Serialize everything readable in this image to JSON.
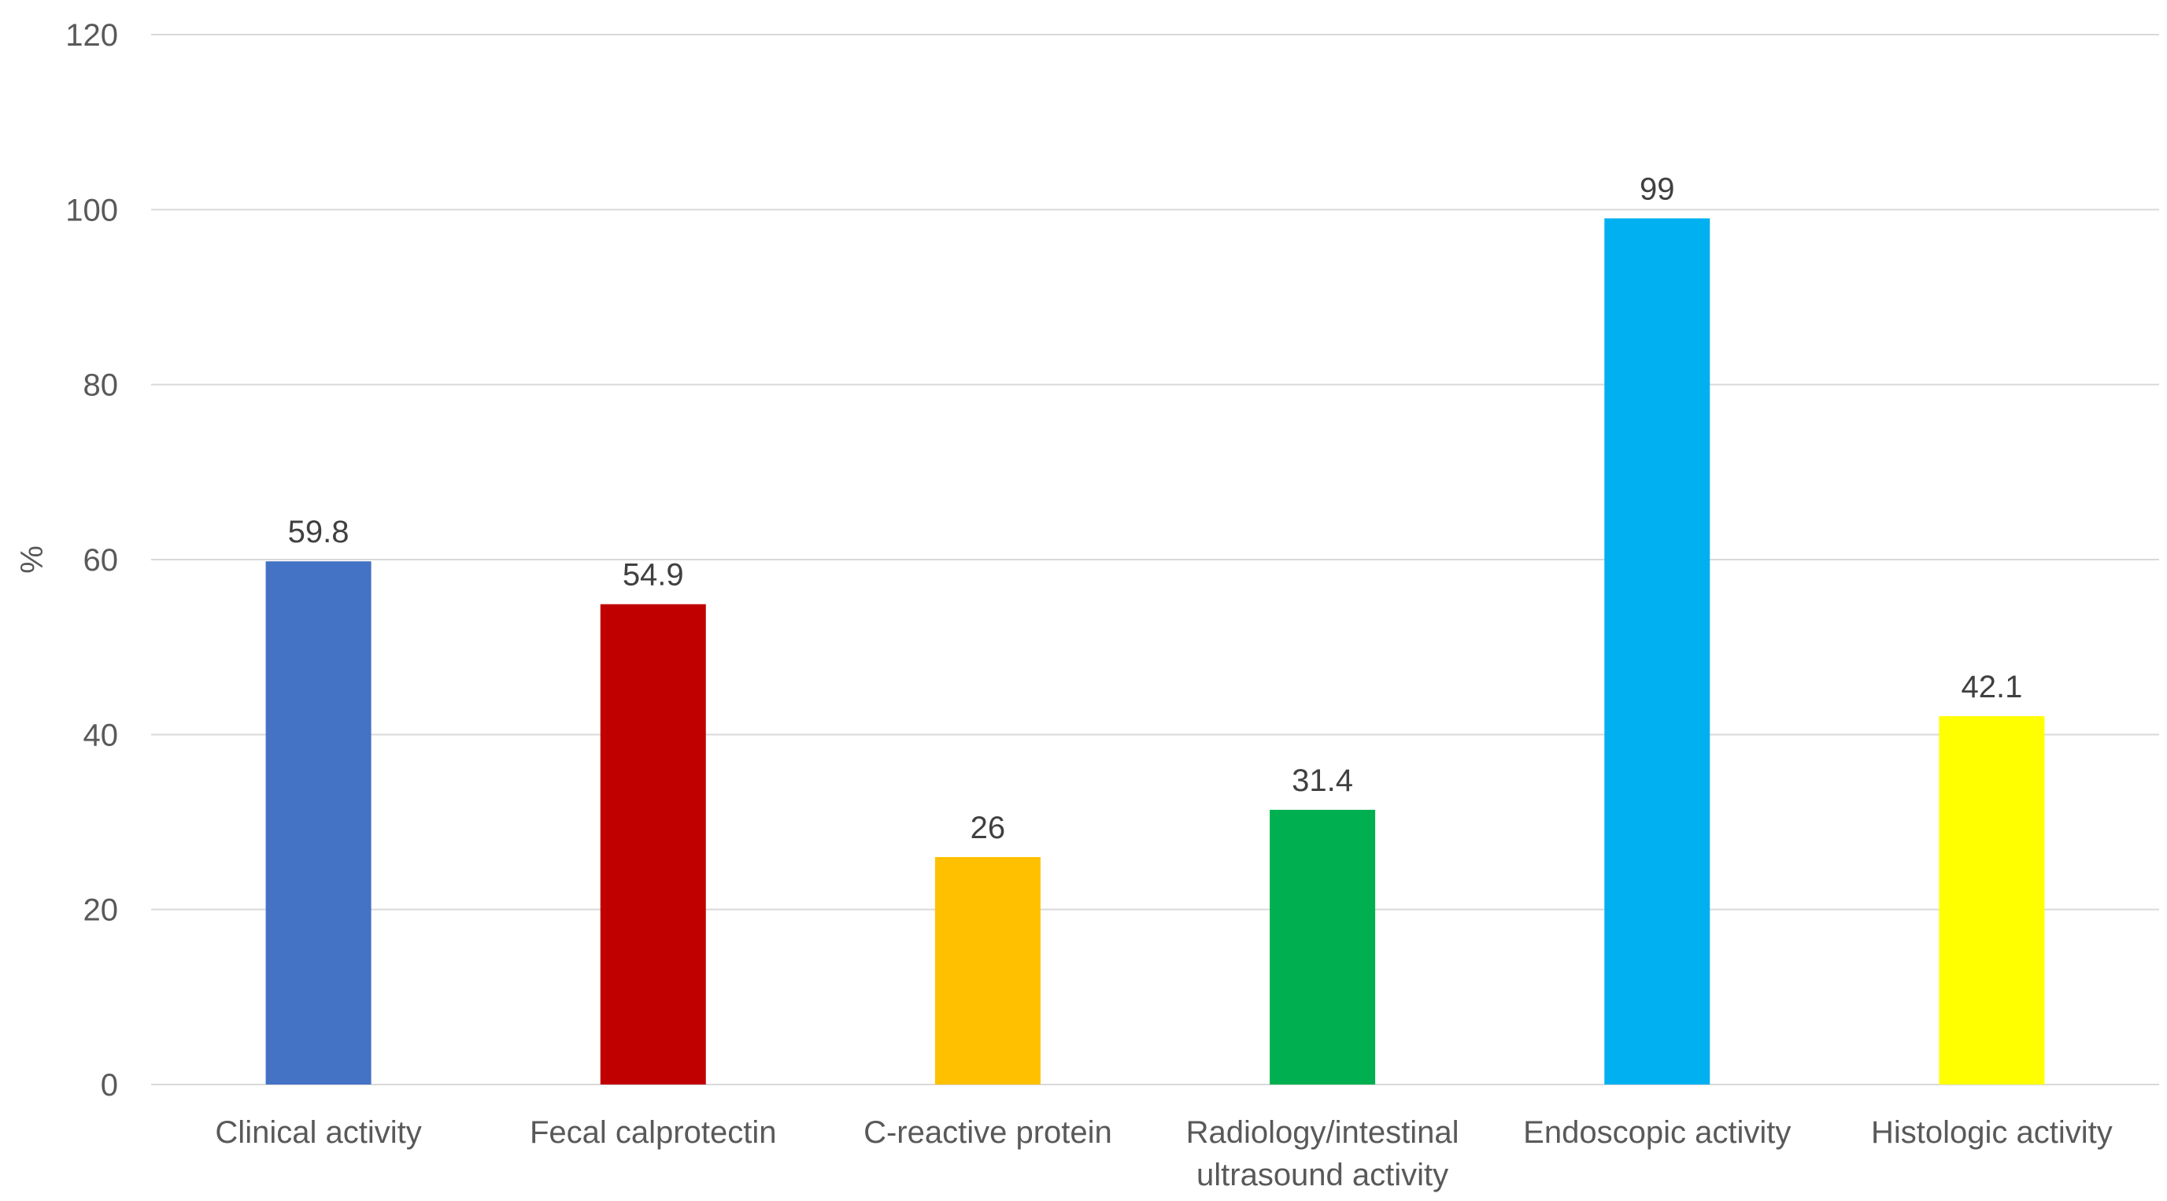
{
  "chart_data": {
    "type": "bar",
    "title": "",
    "xlabel": "",
    "ylabel": "%",
    "ylim": [
      0,
      120
    ],
    "yticks": [
      0,
      20,
      40,
      60,
      80,
      100,
      120
    ],
    "grid": true,
    "legend": "none",
    "categories": [
      [
        "Clinical activity"
      ],
      [
        "Fecal calprotectin"
      ],
      [
        "C-reactive protein"
      ],
      [
        "Radiology/intestinal",
        "ultrasound activity"
      ],
      [
        "Endoscopic activity"
      ],
      [
        "Histologic activity"
      ]
    ],
    "values": [
      59.8,
      54.9,
      26,
      31.4,
      99,
      42.1
    ],
    "data_labels": [
      "59.8",
      "54.9",
      "26",
      "31.4",
      "99",
      "42.1"
    ],
    "colors": [
      "#4472c4",
      "#c00000",
      "#ffc000",
      "#00b050",
      "#00b0f0",
      "#ffff00"
    ]
  }
}
